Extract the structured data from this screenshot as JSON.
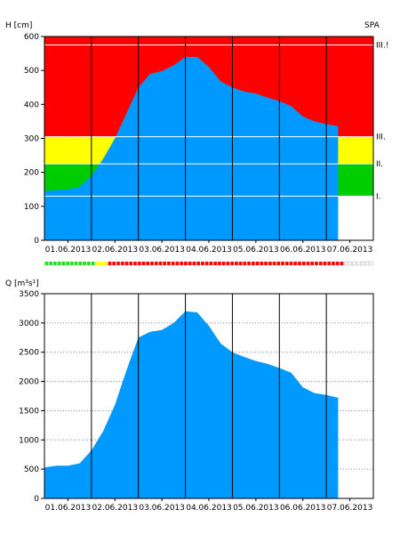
{
  "station_code": "SPA",
  "colors": {
    "water": "#0099ff",
    "red": "#ff0000",
    "yellow": "#ffff00",
    "green": "#00cc00",
    "white": "#ffffff",
    "grid_solid": "#000000",
    "grid_dotted": "#888888"
  },
  "chart_data": [
    {
      "type": "area",
      "ylabel": "H [cm]",
      "ylim": [
        0,
        600
      ],
      "yticks": [
        "0",
        "100",
        "200",
        "300",
        "400",
        "500",
        "600"
      ],
      "xlim": [
        "01.06.2013 00:00",
        "07.06.2013 24:00"
      ],
      "xticks": [
        "01.06.2013",
        "02.06.2013",
        "03.06.2013",
        "04.06.2013",
        "05.06.2013",
        "06.06.2013",
        "07.06.2013"
      ],
      "thresholds": [
        {
          "label": "I.",
          "value": 130
        },
        {
          "label": "II.",
          "value": 225
        },
        {
          "label": "III.",
          "value": 305
        },
        {
          "label": "III.!",
          "value": 575
        }
      ],
      "series": [
        {
          "x": [
            "01.06.2013 00:00",
            "01.06.2013 06:00",
            "01.06.2013 12:00",
            "01.06.2013 18:00",
            "02.06.2013 00:00",
            "02.06.2013 06:00",
            "02.06.2013 12:00",
            "02.06.2013 18:00",
            "03.06.2013 00:00",
            "03.06.2013 06:00",
            "03.06.2013 12:00",
            "03.06.2013 18:00",
            "04.06.2013 00:00",
            "04.06.2013 06:00",
            "04.06.2013 12:00",
            "04.06.2013 18:00",
            "05.06.2013 00:00",
            "05.06.2013 06:00",
            "05.06.2013 12:00",
            "05.06.2013 18:00",
            "06.06.2013 00:00",
            "06.06.2013 06:00",
            "06.06.2013 12:00",
            "06.06.2013 18:00",
            "07.06.2013 00:00",
            "07.06.2013 06:00"
          ],
          "values": [
            145,
            148,
            150,
            158,
            190,
            240,
            300,
            375,
            450,
            490,
            498,
            515,
            540,
            540,
            510,
            468,
            450,
            438,
            432,
            420,
            410,
            395,
            365,
            350,
            342,
            336
          ]
        }
      ]
    },
    {
      "type": "area",
      "ylabel": "Q [m³s¹]",
      "ylim": [
        0,
        3500
      ],
      "yticks": [
        "0",
        "500",
        "1000",
        "1500",
        "2000",
        "2500",
        "3000",
        "3500"
      ],
      "xlim": [
        "01.06.2013 00:00",
        "07.06.2013 24:00"
      ],
      "xticks": [
        "01.06.2013",
        "02.06.2013",
        "03.06.2013",
        "04.06.2013",
        "05.06.2013",
        "06.06.2013",
        "07.06.2013"
      ],
      "series": [
        {
          "x": [
            "01.06.2013 00:00",
            "01.06.2013 06:00",
            "01.06.2013 12:00",
            "01.06.2013 18:00",
            "02.06.2013 00:00",
            "02.06.2013 06:00",
            "02.06.2013 12:00",
            "02.06.2013 18:00",
            "03.06.2013 00:00",
            "03.06.2013 06:00",
            "03.06.2013 12:00",
            "03.06.2013 18:00",
            "04.06.2013 00:00",
            "04.06.2013 06:00",
            "04.06.2013 12:00",
            "04.06.2013 18:00",
            "05.06.2013 00:00",
            "05.06.2013 06:00",
            "05.06.2013 12:00",
            "05.06.2013 18:00",
            "06.06.2013 00:00",
            "06.06.2013 06:00",
            "06.06.2013 12:00",
            "06.06.2013 18:00",
            "07.06.2013 00:00",
            "07.06.2013 06:00"
          ],
          "values": [
            530,
            560,
            560,
            600,
            820,
            1150,
            1600,
            2200,
            2750,
            2850,
            2880,
            3000,
            3200,
            3180,
            2950,
            2650,
            2500,
            2420,
            2350,
            2300,
            2230,
            2150,
            1900,
            1800,
            1770,
            1720
          ]
        }
      ]
    }
  ],
  "status_bar": {
    "segments": [
      "green",
      "green",
      "green",
      "green",
      "green",
      "green",
      "green",
      "green",
      "green",
      "green",
      "green",
      "green",
      "yellow",
      "yellow",
      "yellow",
      "red",
      "red",
      "red",
      "red",
      "red",
      "red",
      "red",
      "red",
      "red",
      "red",
      "red",
      "red",
      "red",
      "red",
      "red",
      "red",
      "red",
      "red",
      "red",
      "red",
      "red",
      "red",
      "red",
      "red",
      "red",
      "red",
      "red",
      "red",
      "red",
      "red",
      "red",
      "red",
      "red",
      "red",
      "red",
      "red",
      "red",
      "red",
      "red",
      "red",
      "red",
      "red",
      "red",
      "red",
      "red",
      "red",
      "red",
      "red",
      "red",
      "red",
      "red",
      "red",
      "red",
      "red",
      "red",
      "red",
      "white",
      "white",
      "white",
      "white",
      "white",
      "white",
      "white"
    ]
  }
}
